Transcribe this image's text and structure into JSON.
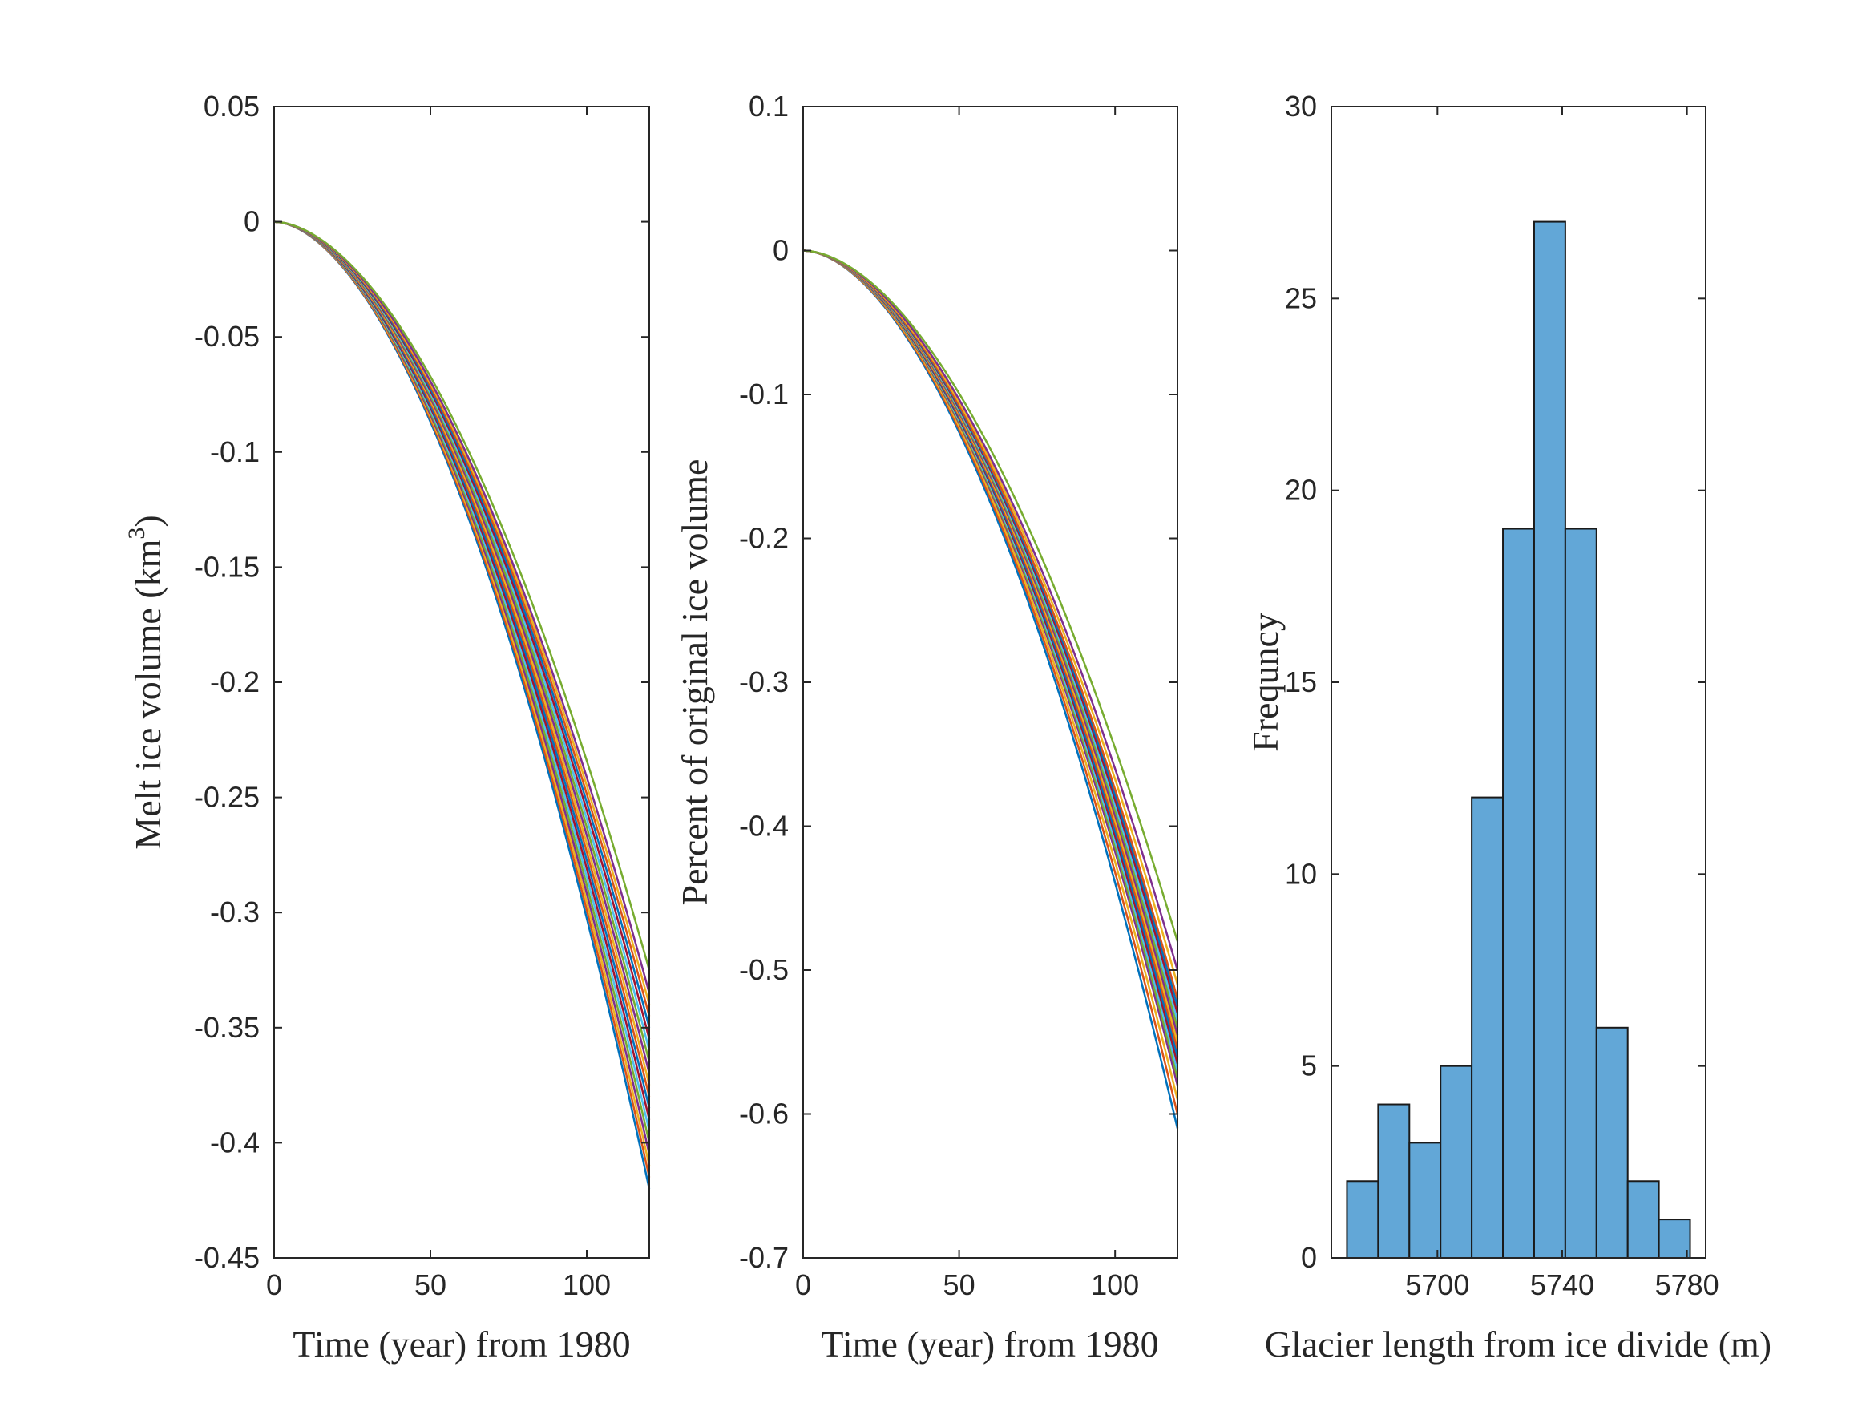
{
  "chart_data": [
    {
      "type": "line",
      "xlabel": "Time (year) from 1980",
      "ylabel_main": "Melt ice volume (km",
      "ylabel_sup": "3",
      "ylabel_end": ")",
      "xlim": [
        0,
        120
      ],
      "ylim": [
        -0.45,
        0.05
      ],
      "xticks": [
        0,
        50,
        100
      ],
      "xtick_labels": [
        "0",
        "50",
        "100"
      ],
      "yticks": [
        0.05,
        0,
        -0.05,
        -0.1,
        -0.15,
        -0.2,
        -0.25,
        -0.3,
        -0.35,
        -0.4,
        -0.45
      ],
      "ytick_labels": [
        "0.05",
        "0",
        "-0.05",
        "-0.1",
        "-0.15",
        "-0.2",
        "-0.25",
        "-0.3",
        "-0.35",
        "-0.4",
        "-0.45"
      ],
      "ensemble": {
        "curve_shape": "y = final * (t/120)^1.8",
        "x_start": 0,
        "x_end": 120,
        "y_start": 0,
        "final_values": [
          -0.325,
          -0.335,
          -0.34,
          -0.345,
          -0.35,
          -0.355,
          -0.36,
          -0.365,
          -0.37,
          -0.375,
          -0.38,
          -0.385,
          -0.39,
          -0.395,
          -0.4,
          -0.405,
          -0.41,
          -0.415,
          -0.42
        ]
      }
    },
    {
      "type": "line",
      "xlabel": "Time (year) from 1980",
      "ylabel": "Percent of original ice volume",
      "xlim": [
        0,
        120
      ],
      "ylim": [
        -0.7,
        0.1
      ],
      "xticks": [
        0,
        50,
        100
      ],
      "xtick_labels": [
        "0",
        "50",
        "100"
      ],
      "yticks": [
        0.1,
        0,
        -0.1,
        -0.2,
        -0.3,
        -0.4,
        -0.5,
        -0.6,
        -0.7
      ],
      "ytick_labels": [
        "0.1",
        "0",
        "-0.1",
        "-0.2",
        "-0.3",
        "-0.4",
        "-0.5",
        "-0.6",
        "-0.7"
      ],
      "ensemble": {
        "curve_shape": "y = final * (t/120)^1.8",
        "x_start": 0,
        "x_end": 120,
        "y_start": 0,
        "final_values": [
          -0.48,
          -0.5,
          -0.51,
          -0.52,
          -0.525,
          -0.53,
          -0.535,
          -0.54,
          -0.545,
          -0.55,
          -0.555,
          -0.56,
          -0.565,
          -0.57,
          -0.575,
          -0.58,
          -0.59,
          -0.6,
          -0.61
        ]
      }
    },
    {
      "type": "bar",
      "subtype": "histogram",
      "xlabel": "Glacier length from ice divide (m)",
      "ylabel": "Frequncy",
      "xlim": [
        5666,
        5786
      ],
      "ylim": [
        0,
        30
      ],
      "xticks": [
        5700,
        5740,
        5780
      ],
      "xtick_labels": [
        "5700",
        "5740",
        "5780"
      ],
      "yticks": [
        0,
        5,
        10,
        15,
        20,
        25,
        30
      ],
      "ytick_labels": [
        "0",
        "5",
        "10",
        "15",
        "20",
        "25",
        "30"
      ],
      "bin_edges": [
        5671,
        5681,
        5691,
        5701,
        5711,
        5721,
        5731,
        5741,
        5751,
        5761,
        5771,
        5781
      ],
      "counts": [
        2,
        4,
        3,
        5,
        12,
        19,
        27,
        19,
        6,
        2,
        1
      ]
    }
  ],
  "colors": {
    "axis": "#262626",
    "bar_fill": "#62a7d7",
    "bar_edge": "#1a1a1a",
    "line_palette": [
      "#0072bd",
      "#d95319",
      "#edb120",
      "#7e2f8e",
      "#77ac30",
      "#4dbeee",
      "#a2142f"
    ]
  }
}
